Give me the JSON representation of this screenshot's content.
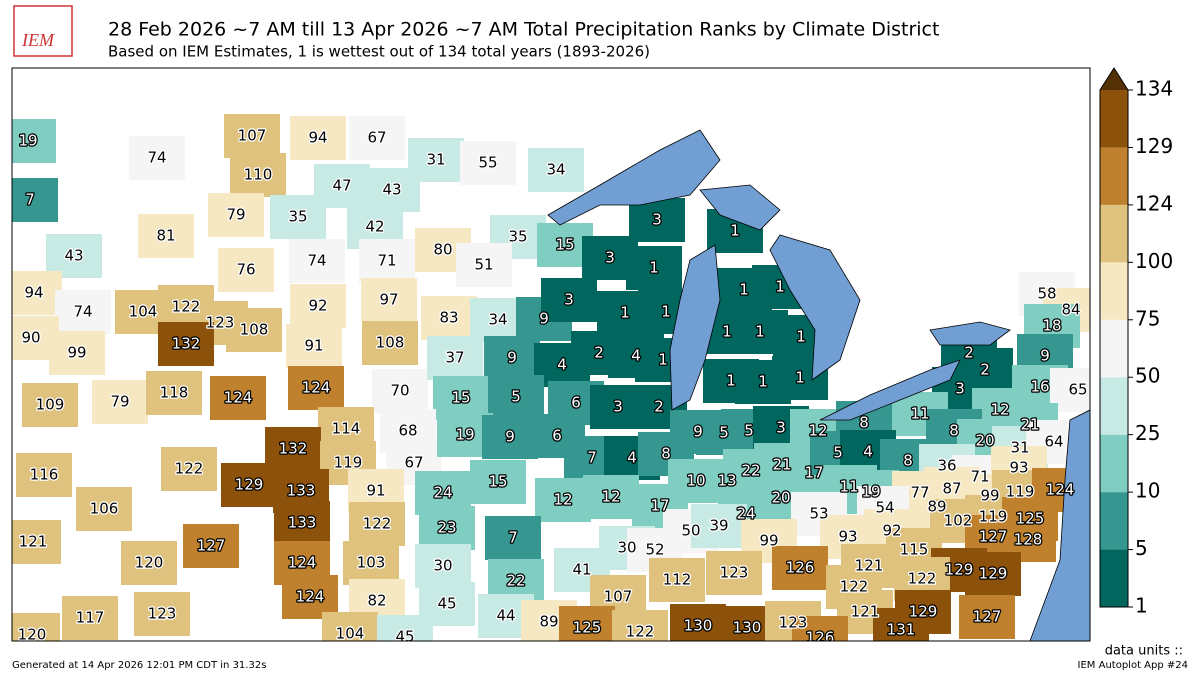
{
  "header": {
    "logo": "IEM",
    "title": "28 Feb 2026 ~7 AM till 13 Apr 2026 ~7 AM Total Precipitation Ranks by Climate District",
    "subtitle": "Based on IEM Estimates, 1 is wettest out of 134 total years (1893-2026)"
  },
  "map": {
    "districts": [
      19,
      74,
      7,
      81,
      43,
      107,
      94,
      67,
      110,
      47,
      43,
      79,
      35,
      42,
      31,
      55,
      34,
      35,
      15,
      80,
      51,
      3,
      1,
      3,
      1,
      76,
      74,
      71,
      97,
      92,
      94,
      74,
      104,
      122,
      123,
      108,
      132,
      90,
      99,
      91,
      108,
      83,
      34,
      9,
      3,
      1,
      1,
      1,
      1,
      109,
      79,
      118,
      124,
      124,
      70,
      37,
      9,
      4,
      2,
      4,
      1,
      1,
      1,
      1,
      1,
      1,
      1,
      2,
      2,
      3,
      58,
      84,
      18,
      9,
      16,
      65,
      15,
      5,
      6,
      3,
      2,
      114,
      68,
      132,
      119,
      67,
      19,
      9,
      6,
      9,
      5,
      5,
      3,
      12,
      8,
      11,
      12,
      21,
      8,
      20,
      31,
      64,
      116,
      122,
      129,
      133,
      91,
      24,
      7,
      4,
      8,
      21,
      17,
      22,
      5,
      4,
      8,
      36,
      71,
      93,
      106,
      15,
      12,
      10,
      13,
      11,
      19,
      77,
      87,
      99,
      119,
      124,
      133,
      122,
      23,
      12,
      17,
      20,
      24,
      53,
      54,
      89,
      102,
      119,
      125,
      121,
      127,
      120,
      7,
      50,
      39,
      92,
      93,
      127,
      128,
      30,
      52,
      99,
      115,
      124,
      103,
      30,
      41,
      121,
      129,
      129,
      122,
      126,
      123,
      112,
      122,
      22,
      124,
      82,
      45,
      107,
      117,
      123,
      44,
      89,
      125,
      122,
      130,
      130,
      123,
      121,
      129,
      127,
      131,
      126,
      120,
      104,
      45
    ]
  },
  "colorbar": {
    "ticks": [
      1,
      5,
      10,
      25,
      50,
      75,
      100,
      124,
      129,
      134
    ],
    "colors": [
      "#01665e",
      "#35978f",
      "#80cdc1",
      "#c7eae5",
      "#f5f5f5",
      "#f6e8c3",
      "#dfc27d",
      "#bf812d",
      "#8c510a",
      "#543005"
    ],
    "units": "data units ::"
  },
  "footer": {
    "generated": "Generated at 14 Apr 2026 12:01 PM CDT in 31.32s",
    "app": "IEM Autoplot App #24"
  }
}
